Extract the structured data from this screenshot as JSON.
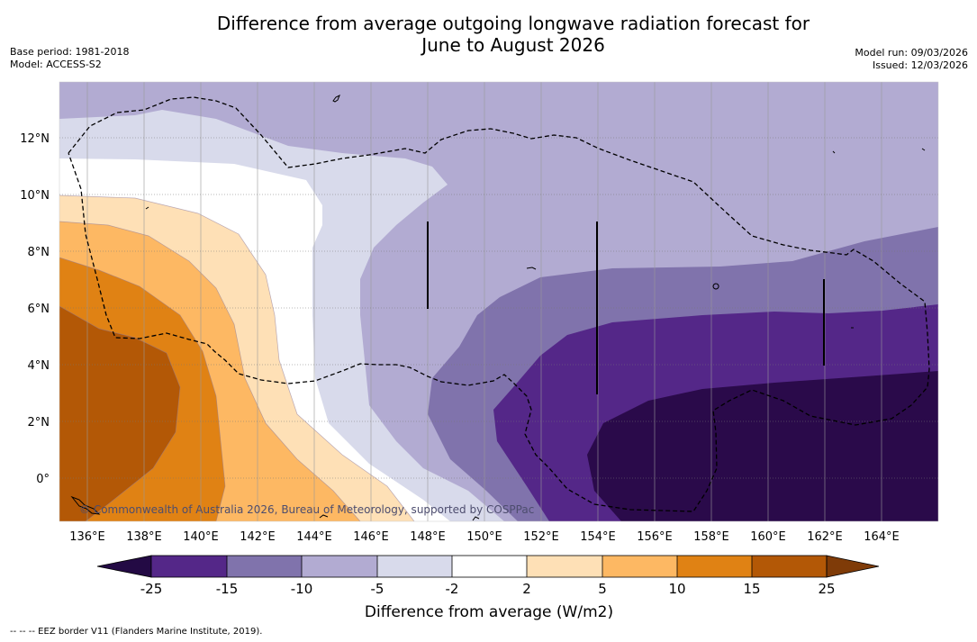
{
  "title": {
    "line1": "Difference from average outgoing longwave radiation forecast for",
    "line2": "June to August 2026"
  },
  "meta_left": {
    "base_period": "Base period: 1981-2018",
    "model": "Model: ACCESS-S2"
  },
  "meta_right": {
    "model_run": "Model run: 09/03/2026",
    "issued": "Issued: 12/03/2026"
  },
  "map": {
    "lon_labels": [
      "136°E",
      "138°E",
      "140°E",
      "142°E",
      "144°E",
      "146°E",
      "148°E",
      "150°E",
      "152°E",
      "154°E",
      "156°E",
      "158°E",
      "160°E",
      "162°E",
      "164°E"
    ],
    "lat_labels": [
      "12°N",
      "10°N",
      "8°N",
      "6°N",
      "4°N",
      "2°N",
      "0°"
    ],
    "lon_range": [
      135,
      166
    ],
    "lat_range": [
      -1.5,
      14
    ],
    "copyright": "© Commonwealth of Australia 2026, Bureau of Meteorology, supported by COSPPac"
  },
  "colorbar": {
    "label": "Difference from average (W/m2)",
    "ticks": [
      "-25",
      "-15",
      "-10",
      "-5",
      "-2",
      "2",
      "5",
      "10",
      "15",
      "25"
    ],
    "low_color": "#230a44",
    "high_color": "#7f3b08",
    "colors": [
      "#542788",
      "#8073ac",
      "#b2abd2",
      "#d8daeb",
      "#ffffff",
      "#fee0b6",
      "#fdb863",
      "#e08214",
      "#b35806"
    ]
  },
  "legend_note": "--  --  -- EEZ border V11 (Flanders Marine Institute, 2019)."
}
